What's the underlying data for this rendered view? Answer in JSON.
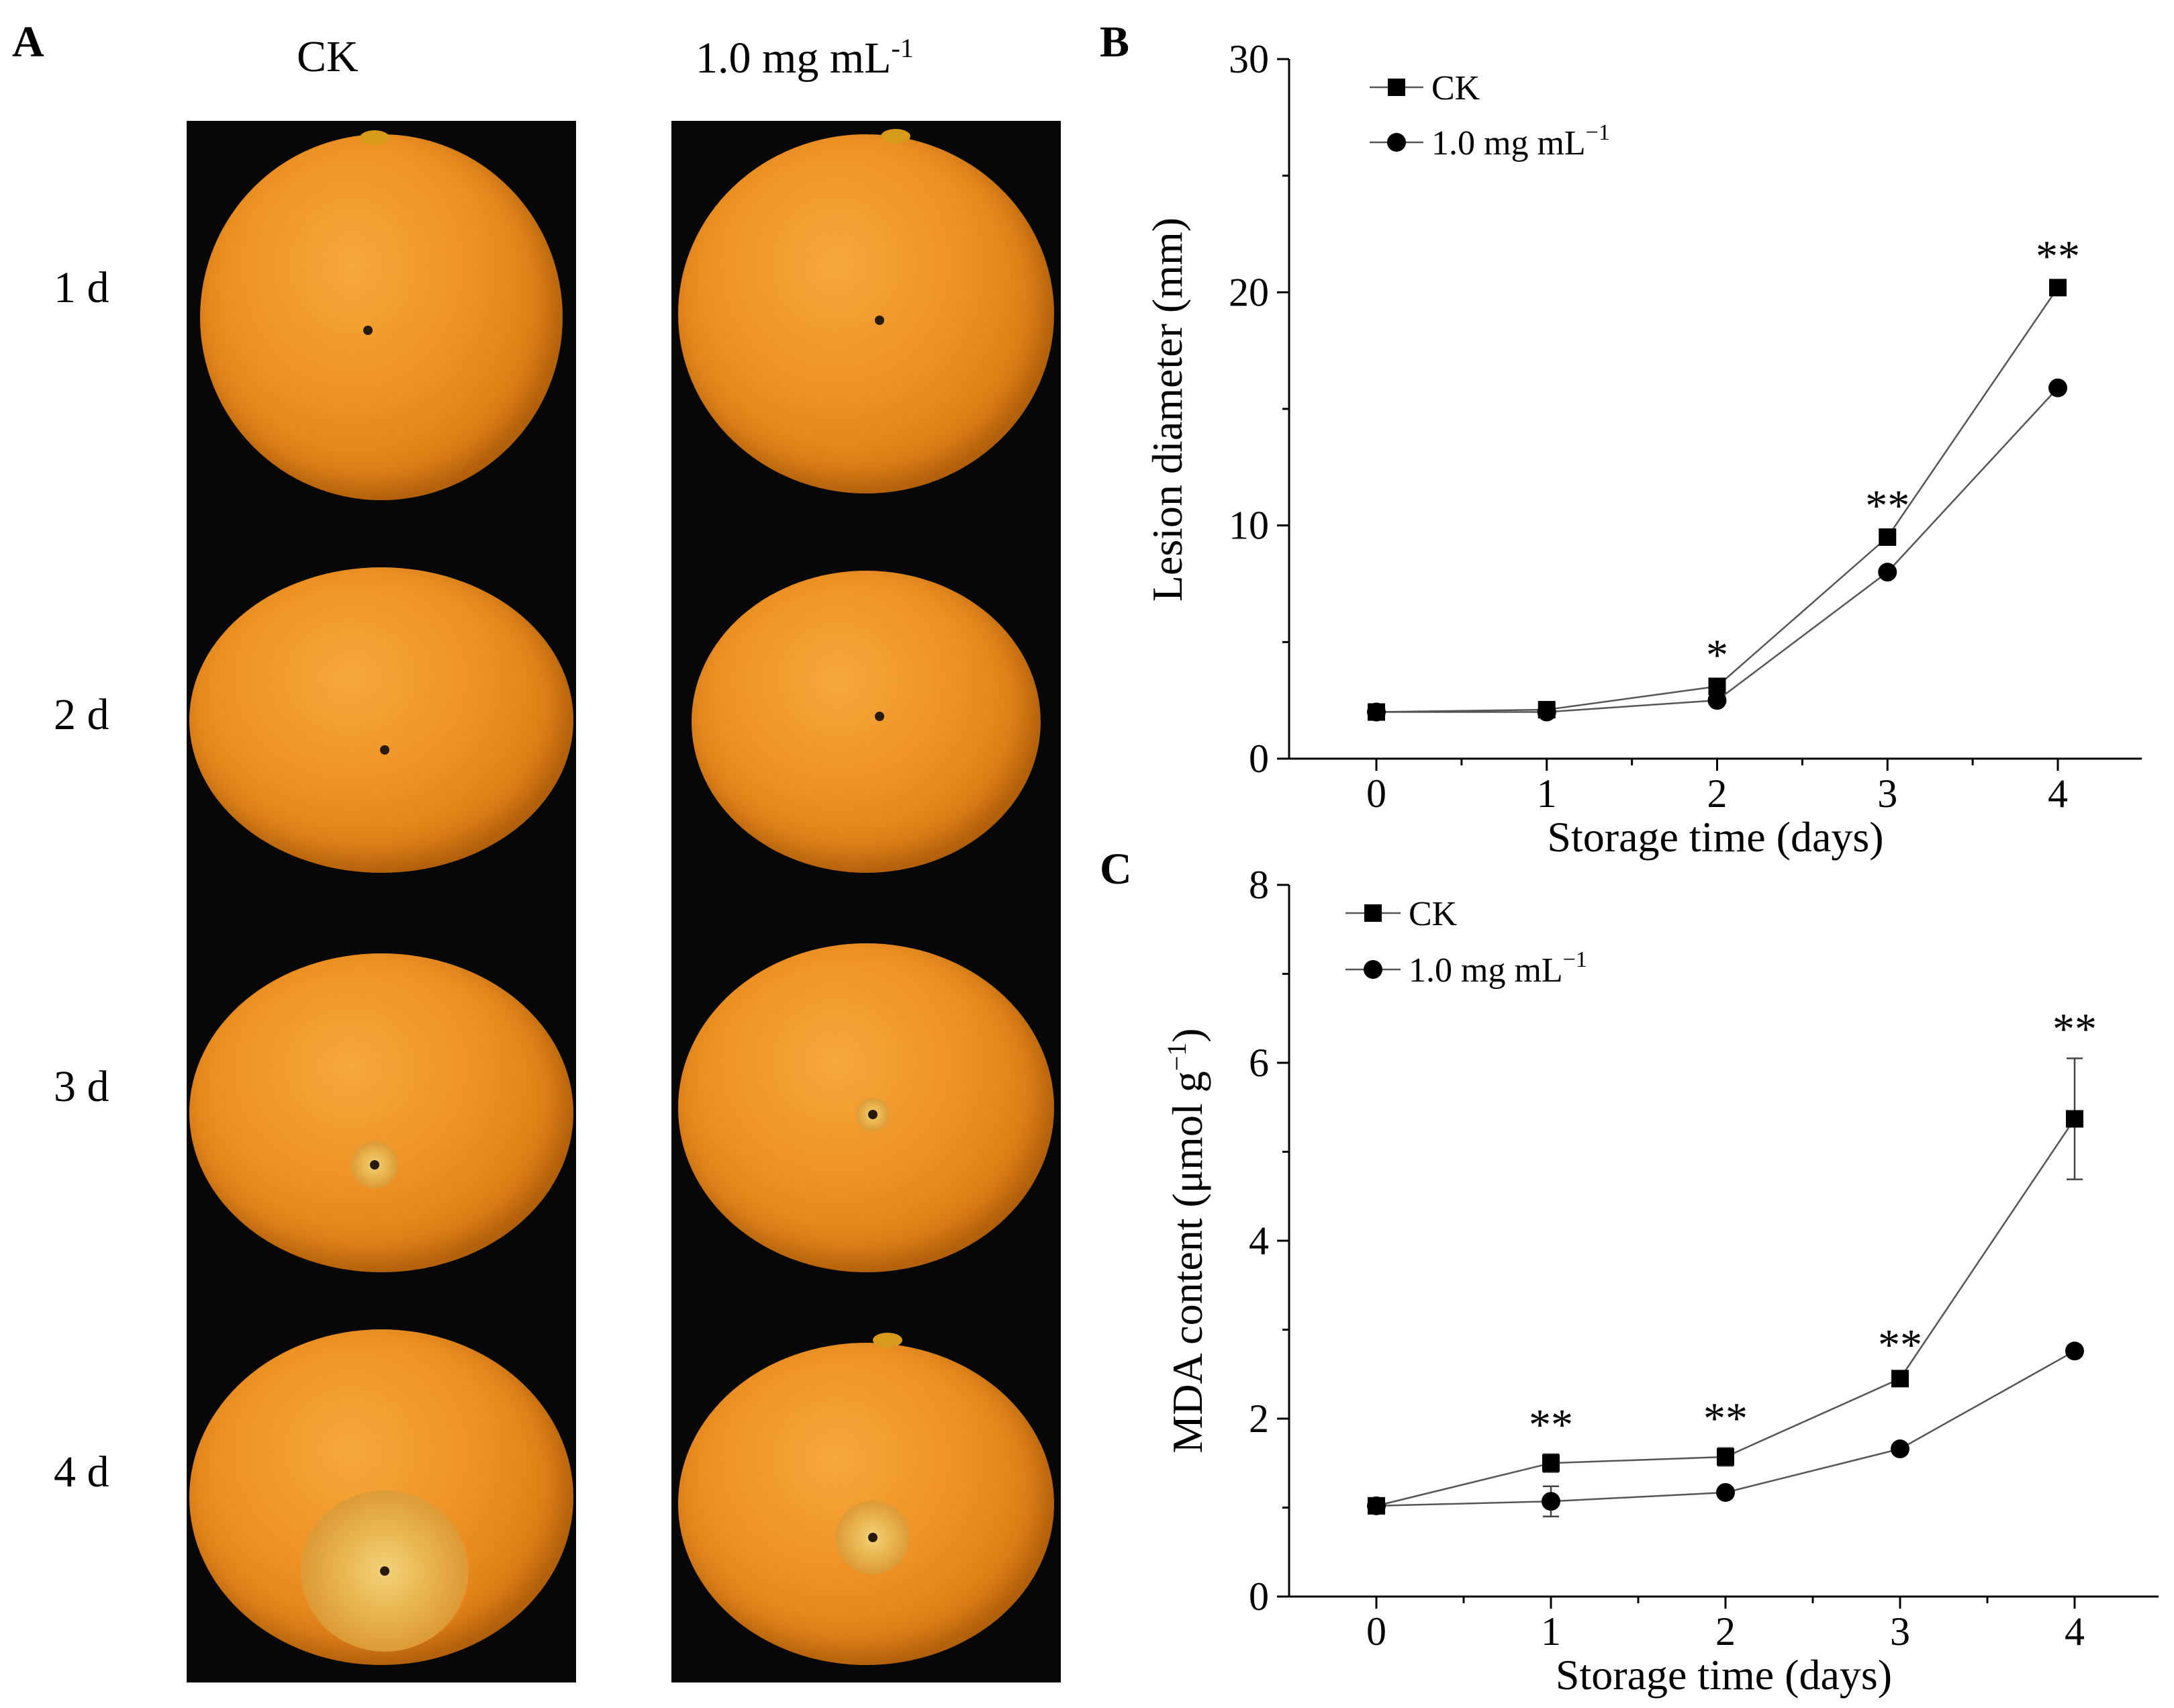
{
  "panels": {
    "a": {
      "letter": "A",
      "columns": [
        "CK",
        "1.0 mg mL",
        "-1"
      ],
      "rows": [
        "1 d",
        "2 d",
        "3 d",
        "4 d"
      ]
    },
    "b": {
      "letter": "B"
    },
    "c": {
      "letter": "C"
    }
  },
  "colors": {
    "line": "#555555",
    "marker": "#000000",
    "fruit": "#ee9224",
    "photo_bg": "#070707"
  },
  "chart_data": [
    {
      "id": "B",
      "type": "line",
      "xlabel": "Storage time (days)",
      "ylabel": "Lesion diameter (mm)",
      "xlim": [
        0,
        4
      ],
      "ylim": [
        0,
        30
      ],
      "xticks": [
        "0",
        "1",
        "2",
        "3",
        "4"
      ],
      "yticks": [
        "0",
        "10",
        "20",
        "30"
      ],
      "grid": false,
      "legend": "top-left",
      "x": [
        0,
        1,
        2,
        3,
        4
      ],
      "series": [
        {
          "name": "CK",
          "marker": "square",
          "values": [
            2.0,
            2.1,
            3.1,
            9.5,
            20.2
          ],
          "errors": [
            0.2,
            0.1,
            0.2,
            0.2,
            0.2
          ]
        },
        {
          "name": "1.0 mg mL",
          "name_sup": "−1",
          "marker": "circle",
          "values": [
            2.0,
            2.0,
            2.5,
            8.0,
            15.9
          ],
          "errors": [
            0.2,
            0.1,
            0.1,
            0.1,
            0.1
          ]
        }
      ],
      "annotations": [
        {
          "x": 2,
          "y": 3.1,
          "text": "*"
        },
        {
          "x": 3,
          "y": 9.5,
          "text": "**"
        },
        {
          "x": 4,
          "y": 20.2,
          "text": "**"
        }
      ]
    },
    {
      "id": "C",
      "type": "line",
      "xlabel": "Storage time (days)",
      "ylabel": "MDA content (μmol g",
      "ylabel_sup": "−1",
      "ylabel_end": ")",
      "xlim": [
        0,
        4
      ],
      "ylim": [
        0,
        8
      ],
      "xticks": [
        "0",
        "1",
        "2",
        "3",
        "4"
      ],
      "yticks": [
        "0",
        "2",
        "4",
        "6",
        "8"
      ],
      "grid": false,
      "legend": "top-left",
      "x": [
        0,
        1,
        2,
        3,
        4
      ],
      "series": [
        {
          "name": "CK",
          "marker": "square",
          "values": [
            1.02,
            1.5,
            1.57,
            2.45,
            5.37
          ],
          "errors": [
            0.05,
            0.1,
            0.1,
            0.05,
            0.68
          ]
        },
        {
          "name": "1.0 mg mL",
          "name_sup": "−1",
          "marker": "circle",
          "values": [
            1.02,
            1.07,
            1.17,
            1.66,
            2.76
          ],
          "errors": [
            0.05,
            0.17,
            0.05,
            0.05,
            0.05
          ]
        }
      ],
      "annotations": [
        {
          "x": 1,
          "y": 1.5,
          "text": "**"
        },
        {
          "x": 2,
          "y": 1.57,
          "text": "**"
        },
        {
          "x": 3,
          "y": 2.45,
          "text": "**"
        },
        {
          "x": 4,
          "y": 5.37,
          "text": "**"
        }
      ]
    }
  ]
}
